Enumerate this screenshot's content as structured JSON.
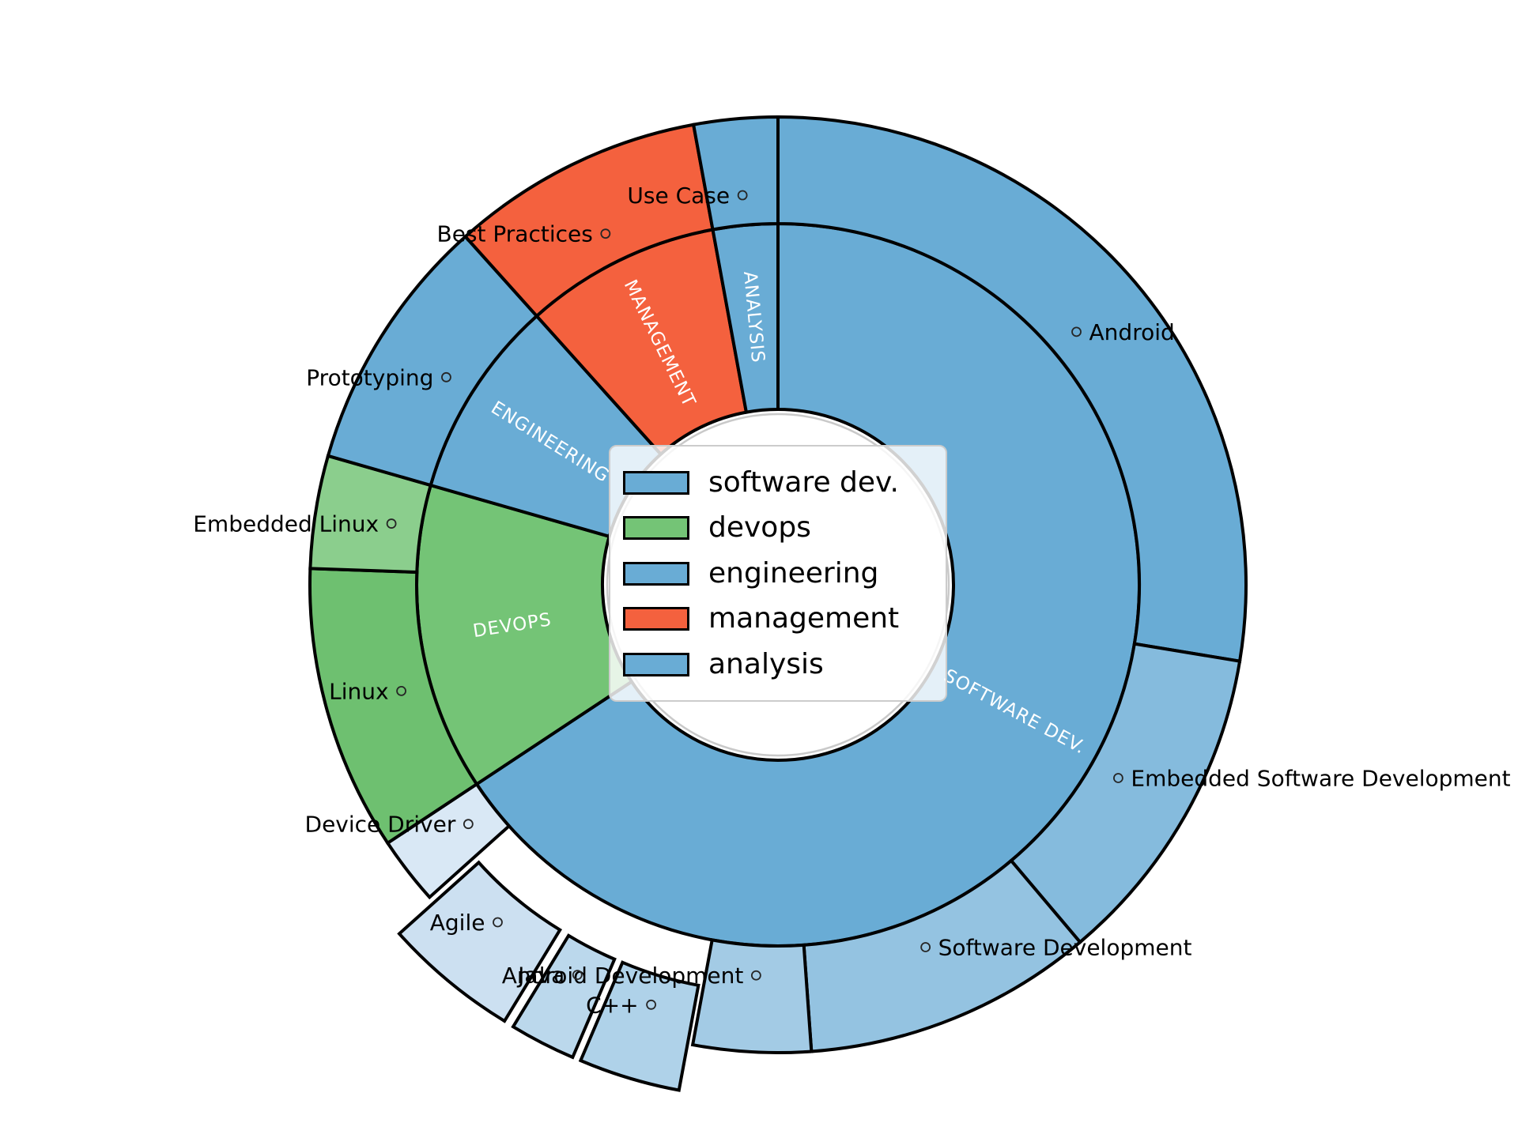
{
  "chart_data": {
    "type": "pie",
    "subtype": "sunburst-two-ring-donut",
    "title": "",
    "direction": "clockwise",
    "start_angle_deg": 90,
    "units": "degrees of arc (share of full circle)",
    "rings": [
      "category (inner ring)",
      "skill (outer ring)"
    ],
    "grid": false,
    "legend_position": "center",
    "hole_edge_color": "#c9c9c9",
    "wedge_edge_color": "#000000",
    "categories": [
      {
        "name": "software dev.",
        "ring_label": "SOFTWARE DEV.",
        "color": "#69acd5",
        "width_deg": 236.5,
        "pct": 65.7,
        "children": [
          {
            "name": "Android",
            "width_deg": 99.4,
            "pct": 27.6,
            "color": "#69acd5",
            "explode": 0,
            "label_side": "right"
          },
          {
            "name": "Embedded Software Development",
            "width_deg": 40.4,
            "pct": 11.2,
            "color": "#85bbdd",
            "explode": 0,
            "label_side": "right"
          },
          {
            "name": "Software Development",
            "width_deg": 36.1,
            "pct": 10.0,
            "color": "#94c3e1",
            "explode": 0,
            "label_side": "right"
          },
          {
            "name": "Android Development",
            "width_deg": 14.6,
            "pct": 4.1,
            "color": "#a3cbe5",
            "explode": 0,
            "label_side": "left"
          },
          {
            "name": "C++",
            "width_deg": 12.6,
            "pct": 3.5,
            "color": "#afd2e9",
            "explode": 60,
            "label_side": "left"
          },
          {
            "name": "Java",
            "width_deg": 8.2,
            "pct": 2.3,
            "color": "#bbd8ec",
            "explode": 60,
            "label_side": "left"
          },
          {
            "name": "Agile",
            "width_deg": 16.8,
            "pct": 4.7,
            "color": "#cce0f1",
            "explode": 60,
            "label_side": "left"
          },
          {
            "name": "Device Driver",
            "width_deg": 8.4,
            "pct": 2.3,
            "color": "#d9e8f5",
            "explode": 0,
            "label_side": "left"
          }
        ]
      },
      {
        "name": "devops",
        "ring_label": "DEVOPS",
        "color": "#74c476",
        "width_deg": 49.5,
        "pct": 13.8,
        "children": [
          {
            "name": "Linux",
            "width_deg": 35.5,
            "pct": 9.9,
            "color": "#6ec070",
            "explode": 0,
            "label_side": "left"
          },
          {
            "name": "Embedded Linux",
            "width_deg": 14.0,
            "pct": 3.9,
            "color": "#8bce8d",
            "explode": 0,
            "label_side": "left"
          }
        ]
      },
      {
        "name": "engineering",
        "ring_label": "ENGINEERING",
        "color": "#69acd5",
        "width_deg": 32.1,
        "pct": 8.9,
        "children": [
          {
            "name": "Prototyping",
            "width_deg": 32.1,
            "pct": 8.9,
            "color": "#69acd5",
            "explode": 0,
            "label_side": "left"
          }
        ]
      },
      {
        "name": "management",
        "ring_label": "MANAGEMENT",
        "color": "#f4613e",
        "width_deg": 31.5,
        "pct": 8.8,
        "children": [
          {
            "name": "Best Practices",
            "width_deg": 31.5,
            "pct": 8.8,
            "color": "#f4613e",
            "explode": 0,
            "label_side": "left"
          }
        ]
      },
      {
        "name": "analysis",
        "ring_label": "ANALYSIS",
        "color": "#69acd5",
        "width_deg": 10.4,
        "pct": 2.9,
        "children": [
          {
            "name": "Use Case",
            "width_deg": 10.4,
            "pct": 2.9,
            "color": "#69acd5",
            "explode": 0,
            "label_side": "left"
          }
        ]
      }
    ],
    "legend": {
      "items": [
        {
          "label": "software dev.",
          "color": "#69acd5"
        },
        {
          "label": "devops",
          "color": "#74c476"
        },
        {
          "label": "engineering",
          "color": "#69acd5"
        },
        {
          "label": "management",
          "color": "#f4613e"
        },
        {
          "label": "analysis",
          "color": "#69acd5"
        }
      ]
    }
  }
}
